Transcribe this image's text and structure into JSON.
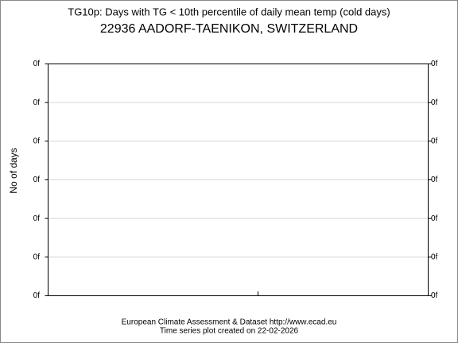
{
  "chart_data": {
    "type": "line",
    "title": "TG10p: Days with TG < 10th percentile of daily mean temp (cold days)",
    "subtitle": "22936 AADORF-TAENIKON, SWITZERLAND",
    "y_label": "No of days",
    "footer": [
      "European Climate Assessment & Dataset  http://www.ecad.eu",
      "Time series plot created on 22-02-2026"
    ],
    "ylim": [
      0,
      6
    ],
    "yticks": [
      {
        "value": 0,
        "label": "0f"
      },
      {
        "value": 1,
        "label": "0f"
      },
      {
        "value": 2,
        "label": "0f"
      },
      {
        "value": 3,
        "label": "0f"
      },
      {
        "value": 4,
        "label": "0f"
      },
      {
        "value": 5,
        "label": "0f"
      },
      {
        "value": 6,
        "label": "0f"
      }
    ],
    "grid": true
  }
}
